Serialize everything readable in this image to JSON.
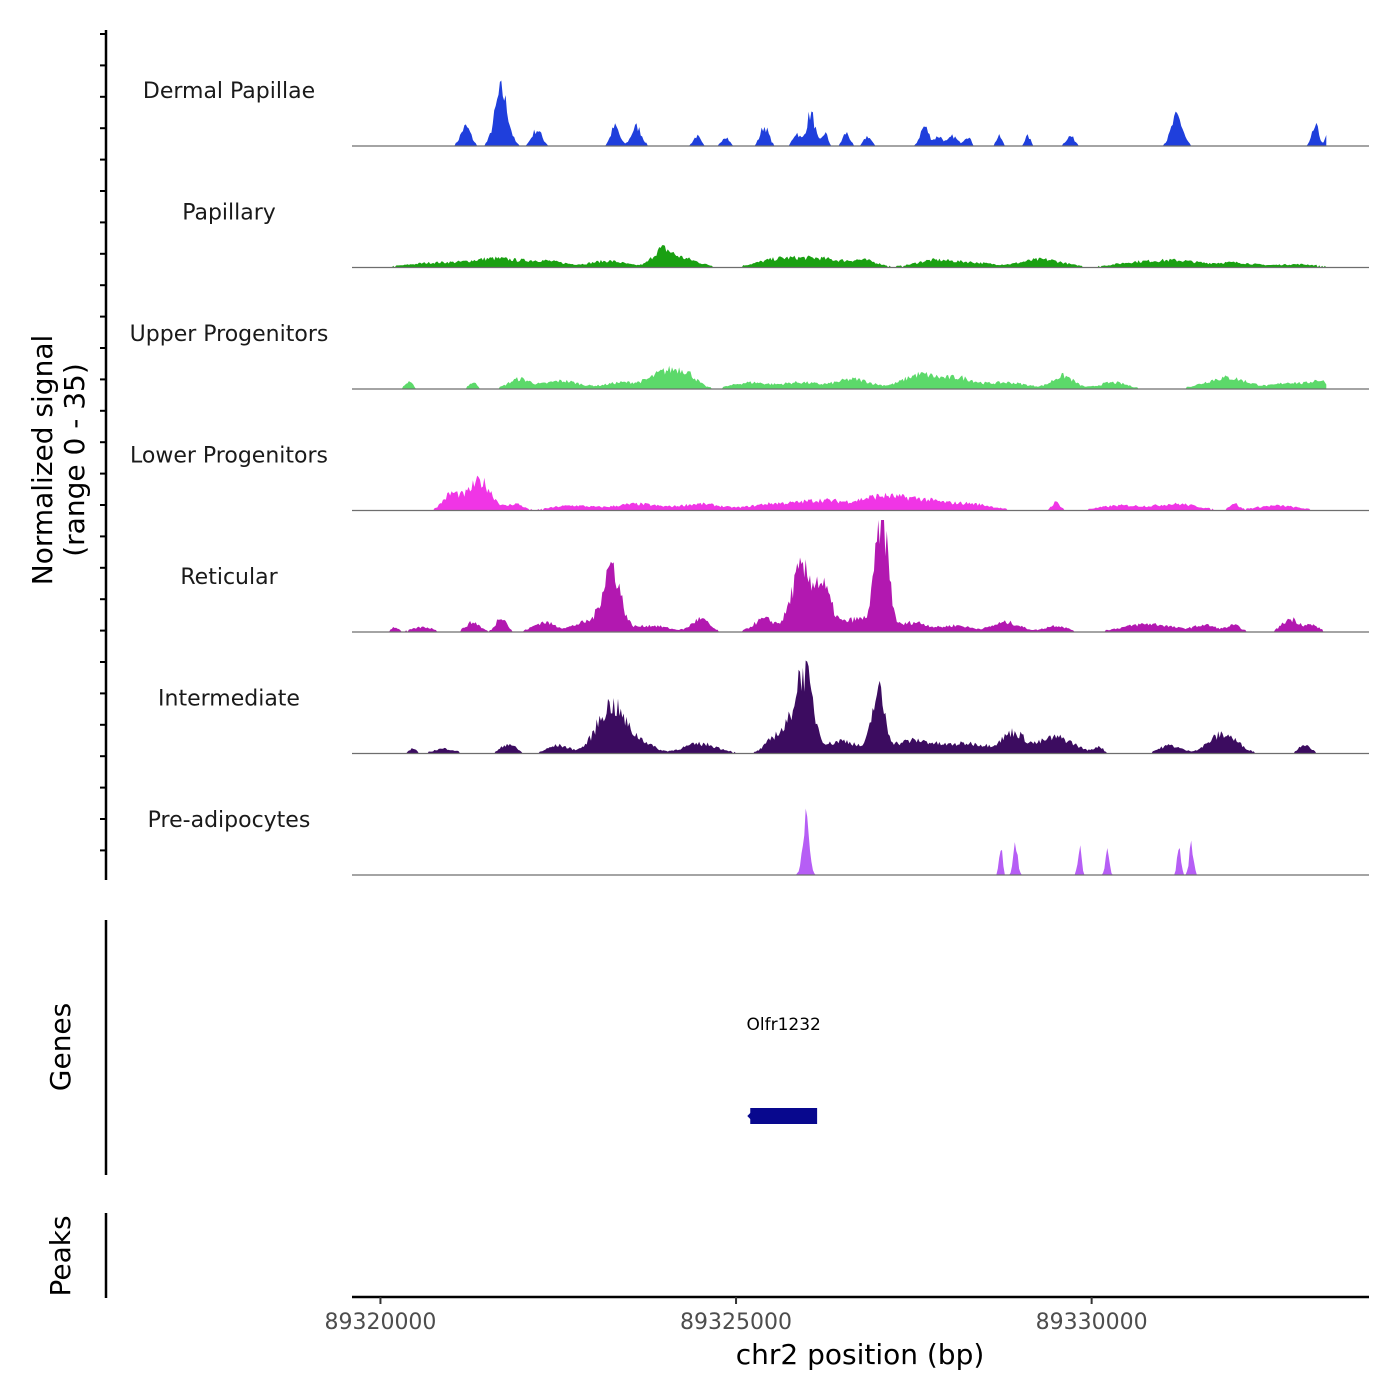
{
  "chart_data": {
    "type": "area",
    "chromosome": "chr2",
    "xlabel": "chr2 position (bp)",
    "xlim": [
      89319600,
      89333900
    ],
    "x_ticks": [
      89320000,
      89325000,
      89330000
    ],
    "x_tick_labels": [
      "89320000",
      "89325000",
      "89330000"
    ],
    "ylabel_line1": "Normalized signal",
    "ylabel_line2": "(range 0 - 35)",
    "ylim": [
      0,
      35
    ],
    "tracks": [
      {
        "name": "Dermal Papillae",
        "color": "#1f3fdc",
        "peaks": [
          [
            89321200,
            6,
            70
          ],
          [
            89321700,
            17,
            90
          ],
          [
            89322200,
            5,
            70
          ],
          [
            89323300,
            6,
            60
          ],
          [
            89323600,
            6,
            70
          ],
          [
            89324450,
            3,
            50
          ],
          [
            89324850,
            3,
            50
          ],
          [
            89325400,
            6,
            60
          ],
          [
            89325850,
            4,
            50
          ],
          [
            89326050,
            10,
            60
          ],
          [
            89326250,
            4,
            40
          ],
          [
            89326550,
            4,
            50
          ],
          [
            89326850,
            3,
            50
          ],
          [
            89327650,
            6,
            60
          ],
          [
            89327850,
            3,
            60
          ],
          [
            89328050,
            3,
            60
          ],
          [
            89328250,
            3,
            50
          ],
          [
            89328700,
            3,
            40
          ],
          [
            89329100,
            3,
            40
          ],
          [
            89329700,
            3,
            60
          ],
          [
            89331200,
            9,
            80
          ],
          [
            89333150,
            6,
            50
          ],
          [
            89333300,
            3,
            20
          ]
        ]
      },
      {
        "name": "Papillary",
        "color": "#1aa012",
        "peaks": [
          [
            89320800,
            1.5,
            400
          ],
          [
            89321600,
            2.5,
            300
          ],
          [
            89322300,
            2,
            300
          ],
          [
            89323200,
            2,
            250
          ],
          [
            89323950,
            4,
            120
          ],
          [
            89324200,
            3,
            250
          ],
          [
            89325600,
            2.5,
            300
          ],
          [
            89326200,
            2.5,
            300
          ],
          [
            89326800,
            2,
            200
          ],
          [
            89327750,
            2,
            250
          ],
          [
            89328300,
            1.5,
            300
          ],
          [
            89329300,
            2.5,
            300
          ],
          [
            89330600,
            1.5,
            300
          ],
          [
            89331200,
            2,
            300
          ],
          [
            89332000,
            1.5,
            300
          ],
          [
            89332900,
            1,
            300
          ]
        ]
      },
      {
        "name": "Upper Progenitors",
        "color": "#5cd96a",
        "peaks": [
          [
            89320400,
            2,
            60
          ],
          [
            89321300,
            2,
            60
          ],
          [
            89321950,
            3,
            150
          ],
          [
            89322550,
            2.5,
            250
          ],
          [
            89323400,
            2,
            250
          ],
          [
            89324000,
            5,
            200
          ],
          [
            89324300,
            4,
            150
          ],
          [
            89325200,
            2,
            250
          ],
          [
            89325900,
            2,
            250
          ],
          [
            89326650,
            3,
            250
          ],
          [
            89327600,
            4.5,
            250
          ],
          [
            89328150,
            3,
            200
          ],
          [
            89328800,
            2,
            300
          ],
          [
            89329600,
            4,
            150
          ],
          [
            89330300,
            2,
            200
          ],
          [
            89331900,
            3.5,
            300
          ],
          [
            89332800,
            2,
            200
          ],
          [
            89333200,
            2.5,
            120
          ]
        ]
      },
      {
        "name": "Lower Progenitors",
        "color": "#f035e6",
        "peaks": [
          [
            89321000,
            5,
            120
          ],
          [
            89321400,
            9,
            160
          ],
          [
            89321900,
            2,
            100
          ],
          [
            89322700,
            1.5,
            300
          ],
          [
            89323600,
            2,
            300
          ],
          [
            89324500,
            2,
            300
          ],
          [
            89325500,
            2,
            300
          ],
          [
            89326200,
            3,
            300
          ],
          [
            89327000,
            4,
            300
          ],
          [
            89327600,
            3,
            300
          ],
          [
            89328300,
            2,
            300
          ],
          [
            89329500,
            2.5,
            60
          ],
          [
            89330400,
            1.5,
            300
          ],
          [
            89331200,
            2,
            300
          ],
          [
            89332000,
            2,
            60
          ],
          [
            89332600,
            1.5,
            300
          ]
        ]
      },
      {
        "name": "Reticular",
        "color": "#b218b0",
        "peaks": [
          [
            89320200,
            1.5,
            50
          ],
          [
            89320600,
            1.5,
            150
          ],
          [
            89321300,
            3,
            100
          ],
          [
            89321700,
            5,
            70
          ],
          [
            89322300,
            3,
            150
          ],
          [
            89322900,
            3,
            200
          ],
          [
            89323250,
            20,
            120
          ],
          [
            89323800,
            2,
            250
          ],
          [
            89324500,
            4,
            120
          ],
          [
            89325400,
            4,
            150
          ],
          [
            89325900,
            18,
            130
          ],
          [
            89326200,
            14,
            130
          ],
          [
            89326700,
            4,
            200
          ],
          [
            89327050,
            35,
            90
          ],
          [
            89327500,
            3,
            200
          ],
          [
            89328100,
            2,
            200
          ],
          [
            89328800,
            3,
            200
          ],
          [
            89329500,
            2,
            150
          ],
          [
            89330800,
            2.5,
            350
          ],
          [
            89331600,
            2,
            150
          ],
          [
            89332000,
            2,
            100
          ],
          [
            89332800,
            4,
            120
          ],
          [
            89333100,
            2,
            100
          ]
        ]
      },
      {
        "name": "Intermediate",
        "color": "#3c0c60",
        "peaks": [
          [
            89320450,
            1.5,
            50
          ],
          [
            89320900,
            1.5,
            150
          ],
          [
            89321800,
            3,
            100
          ],
          [
            89322500,
            2.5,
            150
          ],
          [
            89323250,
            15,
            200
          ],
          [
            89323700,
            3,
            150
          ],
          [
            89324500,
            3,
            250
          ],
          [
            89325600,
            6,
            150
          ],
          [
            89325950,
            25,
            130
          ],
          [
            89326500,
            4,
            200
          ],
          [
            89327000,
            18,
            90
          ],
          [
            89327500,
            4,
            300
          ],
          [
            89328300,
            3,
            300
          ],
          [
            89328900,
            6,
            150
          ],
          [
            89329500,
            5,
            250
          ],
          [
            89330100,
            2,
            60
          ],
          [
            89331100,
            2.5,
            150
          ],
          [
            89331850,
            6,
            200
          ],
          [
            89333000,
            3,
            80
          ]
        ]
      },
      {
        "name": "Pre-adipocytes",
        "color": "#b65ef5",
        "peaks": [
          [
            89325980,
            17,
            45
          ],
          [
            89328720,
            9,
            25
          ],
          [
            89328930,
            9,
            30
          ],
          [
            89329830,
            9,
            25
          ],
          [
            89330220,
            9,
            25
          ],
          [
            89331230,
            9,
            25
          ],
          [
            89331400,
            9,
            30
          ]
        ]
      }
    ],
    "genes_label": "Genes",
    "genes": [
      {
        "name": "Olfr1232",
        "start": 89325200,
        "end": 89326140,
        "strand": "-"
      }
    ],
    "peaks_label": "Peaks"
  }
}
